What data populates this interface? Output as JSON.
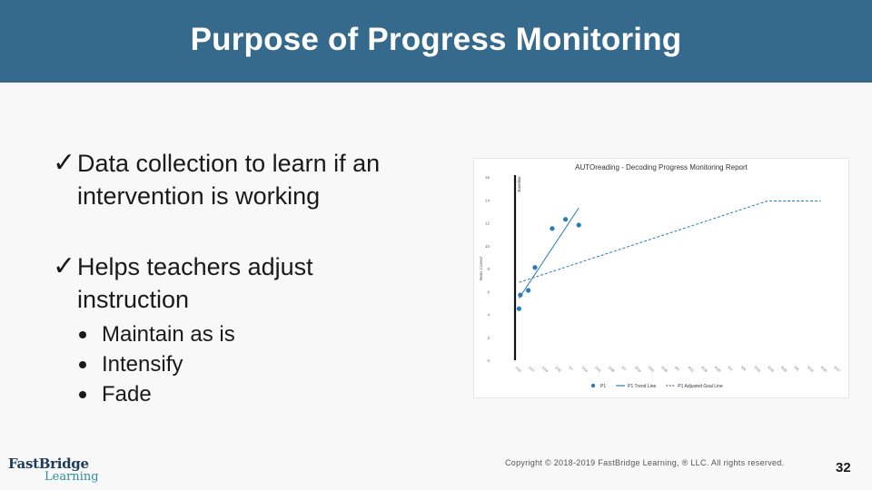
{
  "title": "Purpose of Progress Monitoring",
  "bullets": [
    {
      "text_line1": "Data collection to learn if an",
      "text_line2": "intervention is working",
      "check": "✓"
    },
    {
      "text_line1": "Helps teachers adjust",
      "text_line2": "instruction",
      "check": "✓",
      "sub_items": [
        "Maintain as is",
        "Intensify",
        "Fade"
      ]
    }
  ],
  "chart_data": {
    "type": "line",
    "title": "AUTOreading - Decoding Progress Monitoring Report",
    "ylabel": "Items Correct",
    "ylim": [
      0,
      16
    ],
    "yticks": [
      "0",
      "2",
      "4",
      "6",
      "8",
      "10",
      "12",
      "14",
      "16"
    ],
    "marker_label": "Baseline",
    "series": [
      {
        "name": "P1",
        "kind": "points",
        "color": "#2b7bb5",
        "values": [
          [
            0.3,
            4.5
          ],
          [
            0.4,
            5.7
          ],
          [
            1.0,
            6.1
          ],
          [
            1.5,
            8.1
          ],
          [
            2.8,
            11.5
          ],
          [
            3.8,
            12.3
          ],
          [
            4.8,
            11.8
          ]
        ]
      },
      {
        "name": "P1 Trend Line",
        "kind": "line",
        "color": "#2b7bb5",
        "values": [
          [
            0.3,
            5.4
          ],
          [
            4.8,
            13.3
          ]
        ]
      },
      {
        "name": "P1 Adjusted Goal Line",
        "kind": "dashed",
        "color": "#2b7bb5",
        "values": [
          [
            0.3,
            6.8
          ],
          [
            19.0,
            13.9
          ],
          [
            23.0,
            13.9
          ]
        ]
      }
    ],
    "legend_position": "bottom"
  },
  "footer": {
    "logo_line1": "FastBridge",
    "logo_line2": "Learning",
    "copyright": "Copyright © 2018-2019 FastBridge Learning, ® LLC. All rights reserved.",
    "page_number": "32"
  }
}
